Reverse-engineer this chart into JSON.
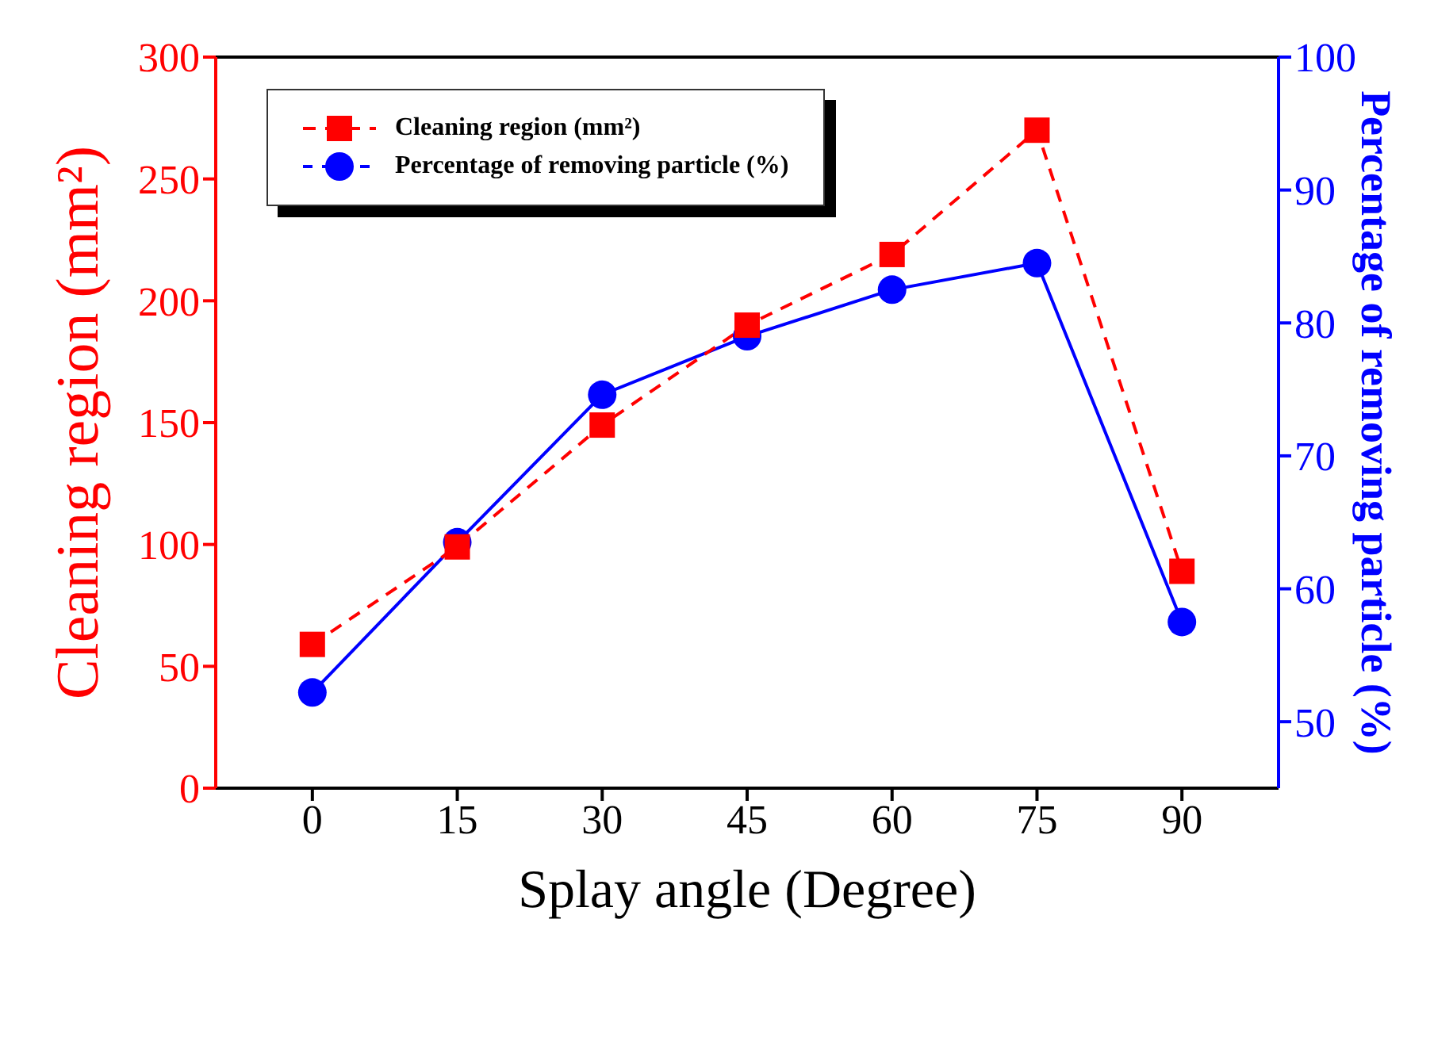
{
  "chart_data": {
    "type": "line",
    "xlabel": "Splay angle (Degree)",
    "ylabel": "Cleaning region (mm²)",
    "y2label": "Percentage of removing particle (%)",
    "x": [
      0,
      15,
      30,
      45,
      60,
      75,
      90
    ],
    "xlim": [
      -10,
      100
    ],
    "xticks": [
      0,
      15,
      30,
      45,
      60,
      75,
      90
    ],
    "ylim": [
      0,
      300
    ],
    "yticks": [
      0,
      50,
      100,
      150,
      200,
      250,
      300
    ],
    "y2lim": [
      45,
      100
    ],
    "y2ticks": [
      50,
      60,
      70,
      80,
      90,
      100
    ],
    "series": [
      {
        "name": "Cleaning region (mm²)",
        "color": "#ff0000",
        "values": [
          59,
          99,
          149,
          190,
          219,
          270,
          89
        ],
        "marker": "square",
        "line_style": "dashed"
      },
      {
        "name": "Percentage of removing particle (%)",
        "color": "#0000ff",
        "values": [
          52.2,
          63.5,
          74.6,
          79,
          82.5,
          84.5,
          57.5
        ],
        "axis": "y2",
        "marker": "circle",
        "line_style": "solid"
      }
    ],
    "legend": "top left",
    "grid": false
  }
}
